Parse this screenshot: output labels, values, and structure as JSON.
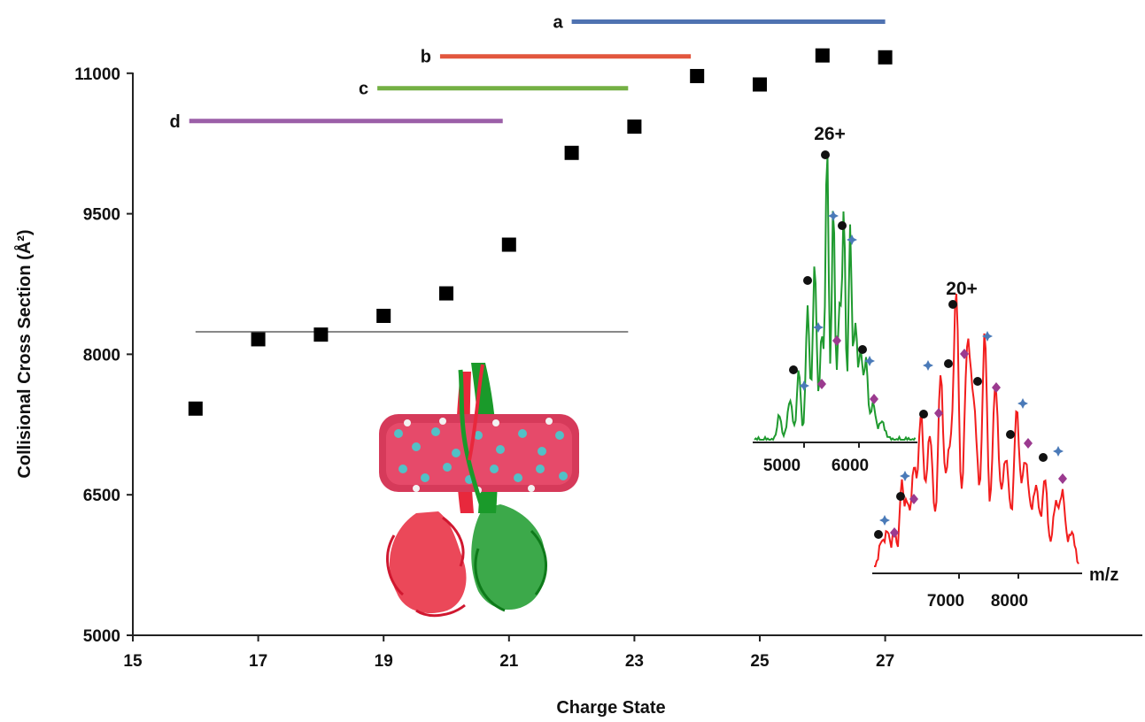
{
  "chart_data": {
    "type": "scatter",
    "xlabel": "Charge State",
    "ylabel": "Collisional Cross Section (Å²)",
    "xlim": [
      15,
      28
    ],
    "ylim": [
      5000,
      11600
    ],
    "xticks": [
      "15",
      "17",
      "19",
      "21",
      "23",
      "25",
      "27"
    ],
    "yticks": [
      "5000",
      "6500",
      "8000",
      "9500",
      "11000"
    ],
    "grid": false,
    "marker": "square",
    "marker_color": "#000000",
    "points": [
      {
        "x": 16,
        "y": 7420
      },
      {
        "x": 17,
        "y": 8160
      },
      {
        "x": 18,
        "y": 8210
      },
      {
        "x": 19,
        "y": 8410
      },
      {
        "x": 20,
        "y": 8650
      },
      {
        "x": 21,
        "y": 9170
      },
      {
        "x": 22,
        "y": 10150
      },
      {
        "x": 23,
        "y": 10430
      },
      {
        "x": 24,
        "y": 10970
      },
      {
        "x": 25,
        "y": 10880
      },
      {
        "x": 26,
        "y": 11190
      },
      {
        "x": 27,
        "y": 11170
      }
    ],
    "reference_line": {
      "y": 8240,
      "x_start": 16,
      "x_end": 22.9,
      "color": "#888888"
    },
    "ranges": [
      {
        "label": "a",
        "x_start": 22,
        "x_end": 27,
        "y": 11550,
        "color": "#4f72b1"
      },
      {
        "label": "b",
        "x_start": 19.9,
        "x_end": 23.9,
        "y": 11180,
        "color": "#e2563e"
      },
      {
        "label": "c",
        "x_start": 18.9,
        "x_end": 22.9,
        "y": 10840,
        "color": "#74b044"
      },
      {
        "label": "d",
        "x_start": 15.9,
        "x_end": 20.9,
        "y": 10490,
        "color": "#9b5fa8"
      }
    ]
  },
  "insets": {
    "spectrum_26": {
      "charge_label": "26+",
      "x_ticks": [
        "5000",
        "6000"
      ],
      "color": "#1f9a2f"
    },
    "spectrum_20": {
      "charge_label": "20+",
      "x_ticks": [
        "7000",
        "8000"
      ],
      "x_label": "m/z",
      "color": "#f21d1d"
    },
    "marker_colors": {
      "circle": "#111111",
      "star": "#4a7ab8",
      "diamond": "#9b3a8f"
    }
  }
}
